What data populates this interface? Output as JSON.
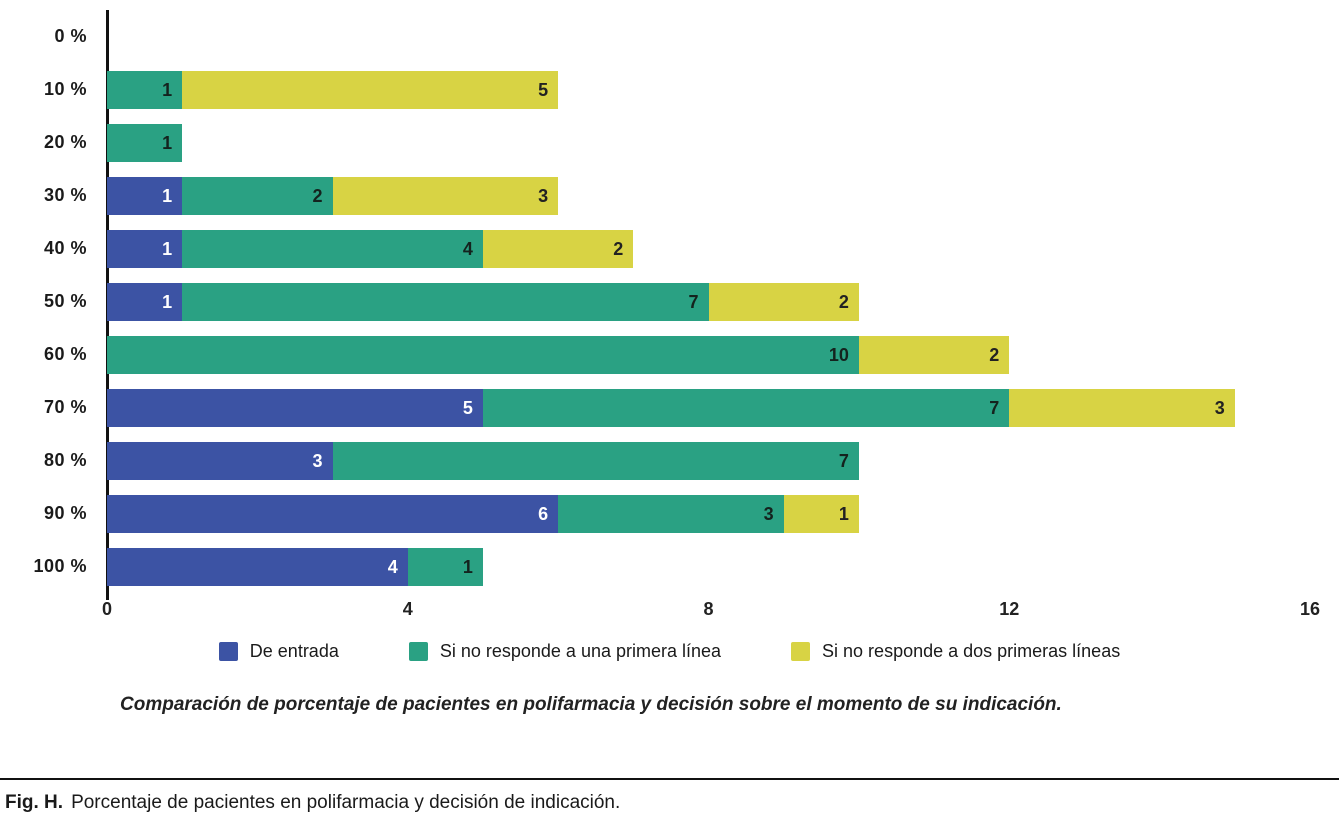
{
  "chart_data": {
    "type": "bar",
    "orientation": "horizontal",
    "stacked": true,
    "grid": false,
    "categories": [
      "0 %",
      "10 %",
      "20 %",
      "30 %",
      "40 %",
      "50 %",
      "60 %",
      "70 %",
      "80 %",
      "90 %",
      "100 %"
    ],
    "series": [
      {
        "name": "De entrada",
        "color": "#3c53a4",
        "label_color": "#ffffff",
        "values": [
          0,
          0,
          0,
          1,
          1,
          1,
          0,
          5,
          3,
          6,
          4
        ]
      },
      {
        "name": "Si no responde a una primera línea",
        "color": "#2aa183",
        "label_color": "#14231e",
        "values": [
          0,
          1,
          1,
          2,
          4,
          7,
          10,
          7,
          7,
          3,
          1
        ]
      },
      {
        "name": "Si no responde a dos primeras líneas",
        "color": "#d8d344",
        "label_color": "#222222",
        "values": [
          0,
          5,
          0,
          3,
          2,
          2,
          2,
          3,
          0,
          1,
          0
        ]
      }
    ],
    "xlim": [
      0,
      16
    ],
    "x_ticks": [
      "0",
      "4",
      "8",
      "12",
      "16"
    ],
    "legend_position": "bottom",
    "caption": "Comparación de porcentaje de pacientes en polifarmacia y decisión sobre el momento de su indicación."
  },
  "figure": {
    "label": "Fig. H.",
    "text": "Porcentaje de pacientes en polifarmacia y decisión de indicación."
  }
}
